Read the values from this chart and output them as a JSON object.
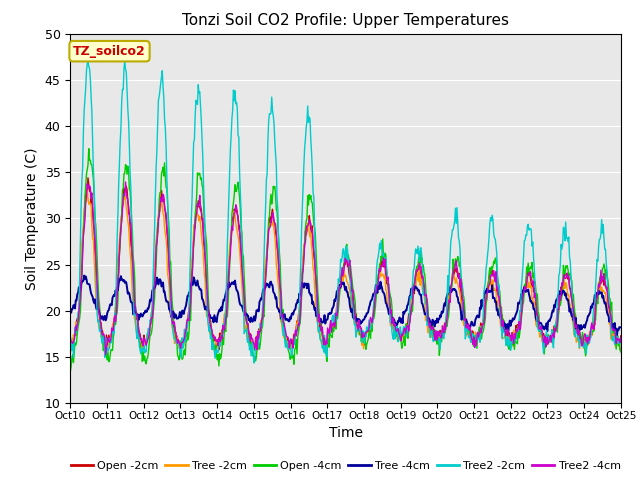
{
  "title": "Tonzi Soil CO2 Profile: Upper Temperatures",
  "xlabel": "Time",
  "ylabel": "Soil Temperature (C)",
  "ylim": [
    10,
    50
  ],
  "bg_color": "#e8e8e8",
  "annotation_text": "TZ_soilco2",
  "annotation_bg": "#ffffcc",
  "annotation_edge": "#bbaa00",
  "annotation_text_color": "#cc0000",
  "xtick_labels": [
    "Oct 10",
    "Oct 11",
    "Oct 12",
    "Oct 13",
    "Oct 14",
    "Oct 15",
    "Oct 16",
    "Oct 17",
    "Oct 18",
    "Oct 19",
    "Oct 20",
    "Oct 21",
    "Oct 22",
    "Oct 23",
    "Oct 24",
    "Oct 25"
  ],
  "series_colors": [
    "#cc0000",
    "#ff9900",
    "#00cc00",
    "#000099",
    "#00cccc",
    "#cc00cc"
  ],
  "legend_labels": [
    "Open -2cm",
    "Tree -2cm",
    "Open -4cm",
    "Tree -4cm",
    "Tree2 -2cm",
    "Tree2 -4cm"
  ],
  "yticks": [
    10,
    15,
    20,
    25,
    30,
    35,
    40,
    45,
    50
  ],
  "grid_color": "#ffffff",
  "n_days": 15,
  "pts_per_day": 48
}
